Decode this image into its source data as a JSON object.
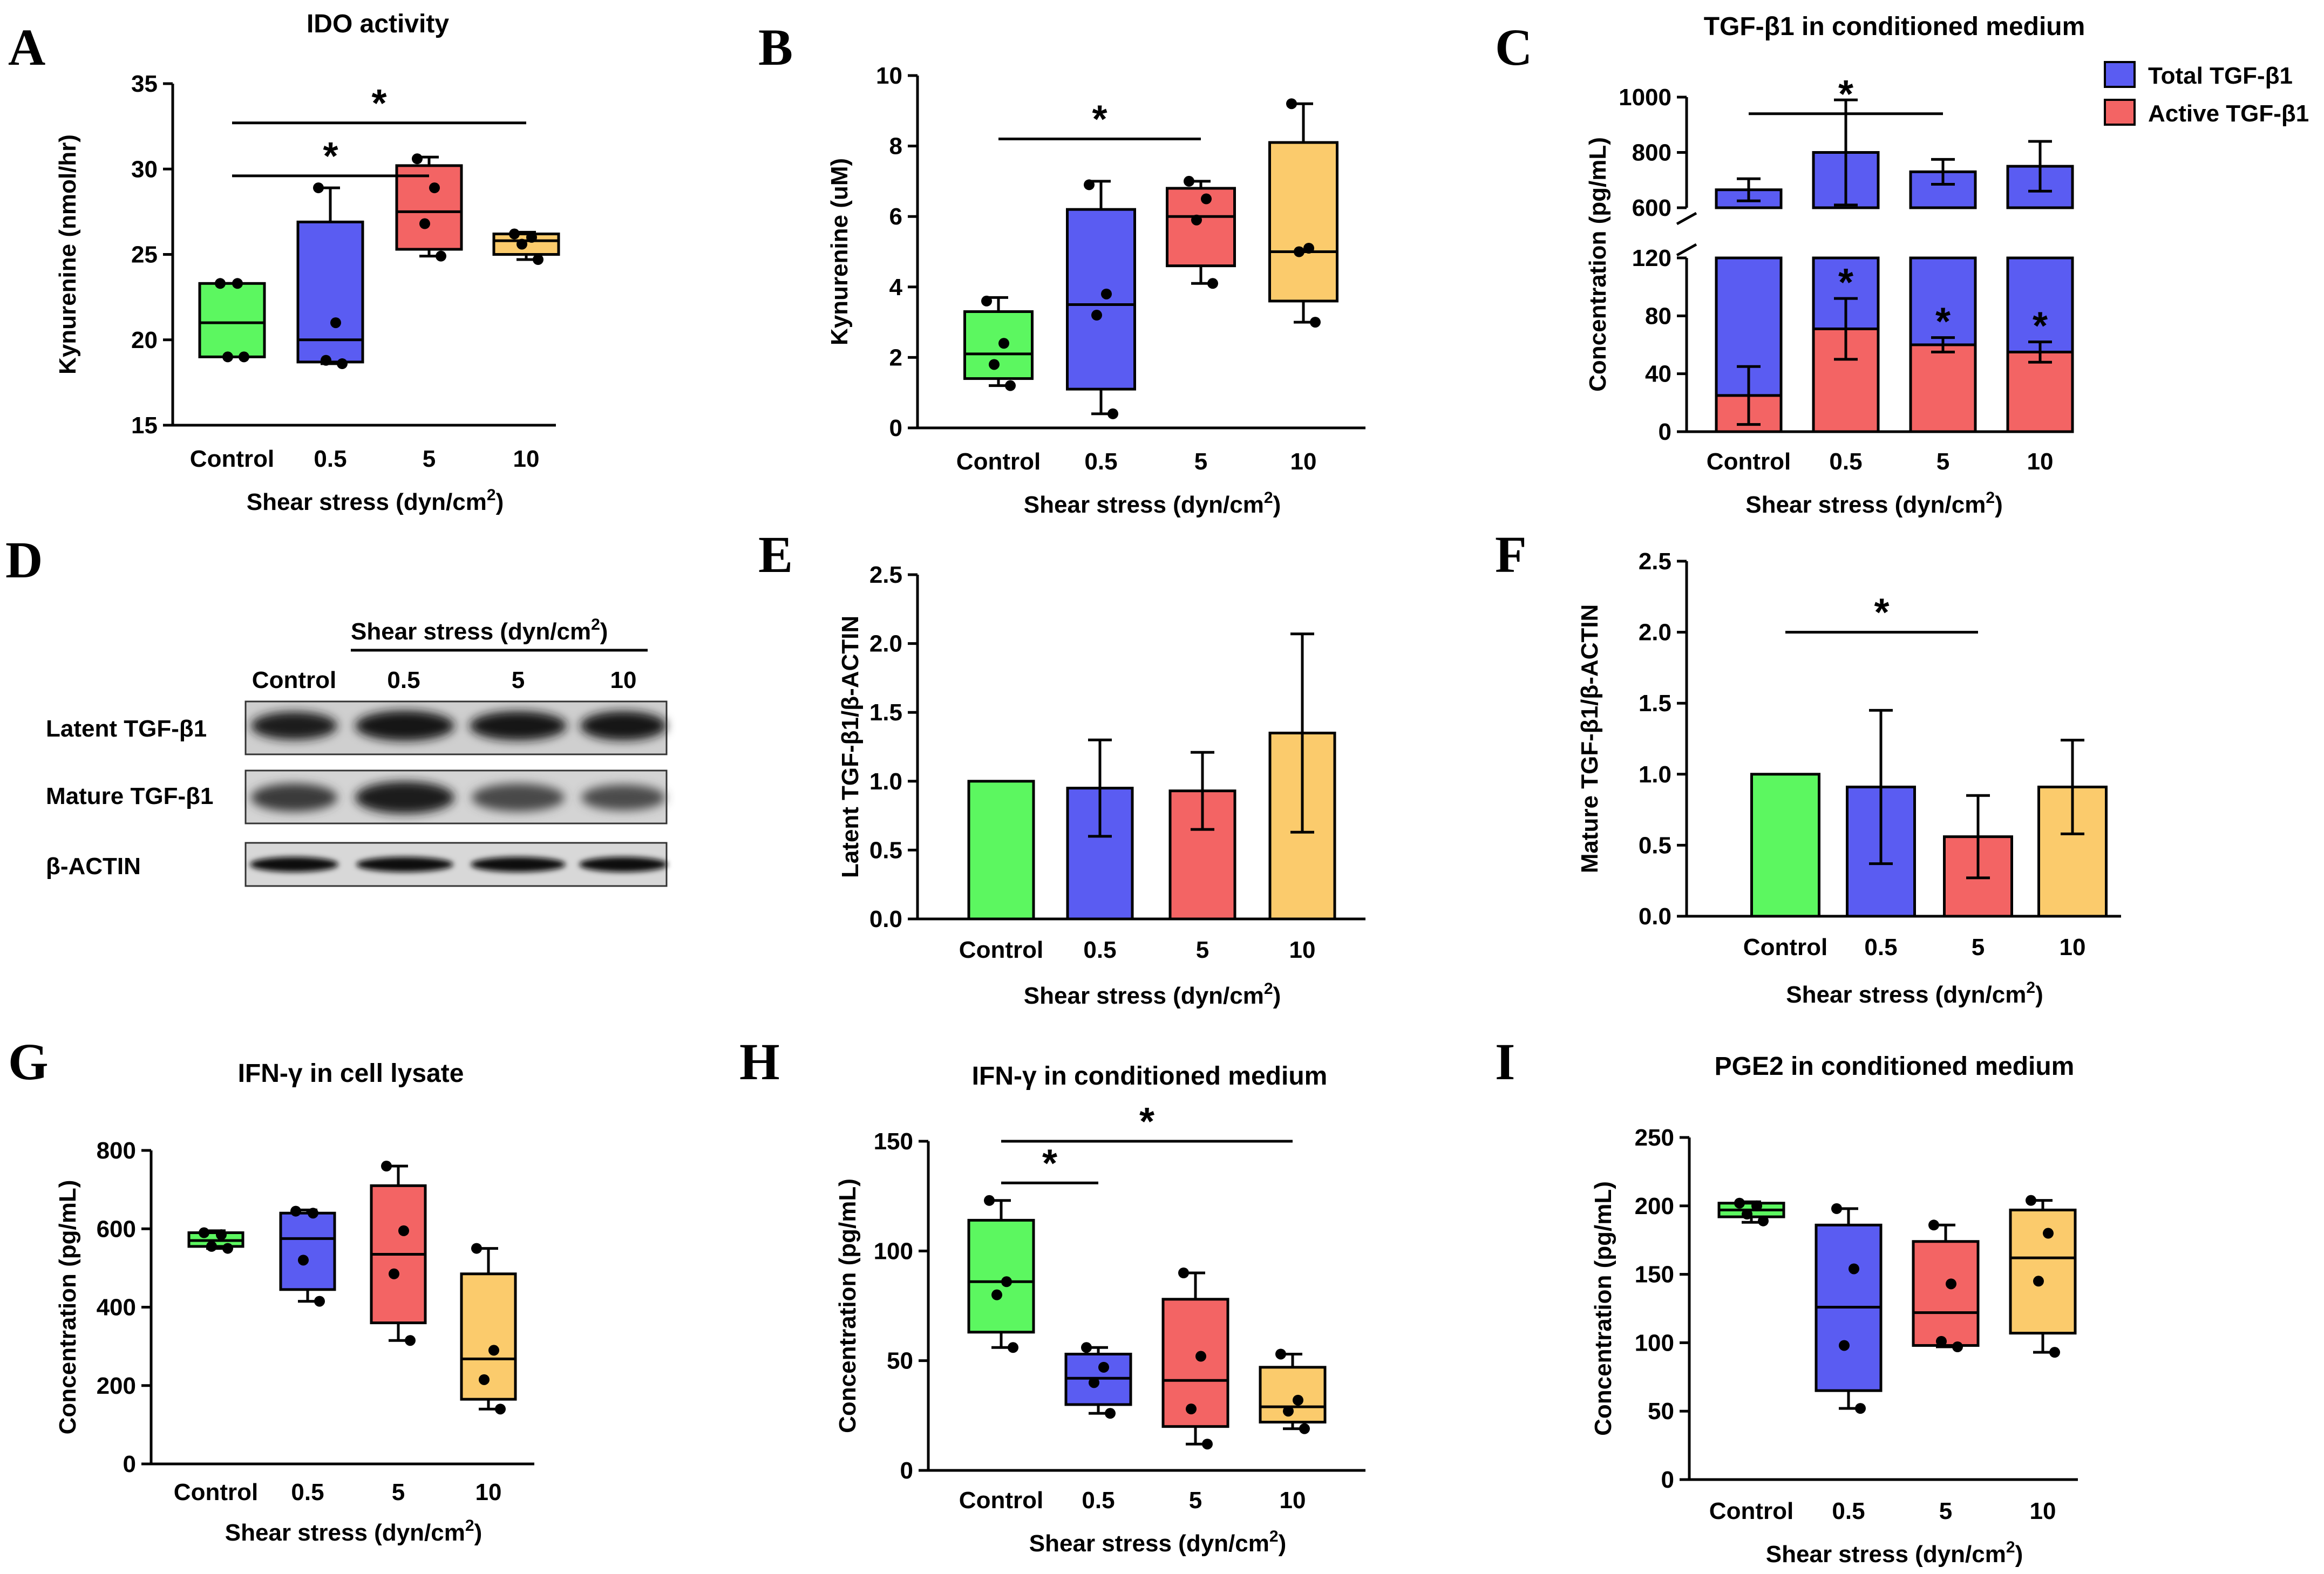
{
  "colors": {
    "control": "#5cf760",
    "low": "#5a5cf2",
    "mid": "#f36464",
    "high": "#fbcb6c",
    "star_blue": "#1a1a99",
    "star_red": "#8b1a1a"
  },
  "blot": {
    "letter": "D",
    "header": "Shear stress (dyn/cm",
    "header_sup": "2",
    "header_end": ")",
    "lanes": [
      "Control",
      "0.5",
      "5",
      "10"
    ],
    "rows": [
      "Latent TGF-β1",
      "Mature TGF-β1",
      "β-ACTIN"
    ]
  },
  "chart_data": [
    {
      "id": "A",
      "type": "box",
      "letter": "A",
      "title": "IDO activity",
      "ylabel": "Kynurenine (nmol/hr)",
      "xlabel": "Shear stress (dyn/cm",
      "xlabel_sup": "2",
      "xlabel_end": ")",
      "ylim": [
        15,
        35
      ],
      "yticks": [
        "15",
        "20",
        "25",
        "30",
        "35"
      ],
      "categories": [
        "Control",
        "0.5",
        "5",
        "10"
      ],
      "boxes": [
        {
          "min": 19.0,
          "q1": 19.0,
          "median": 21.0,
          "q3": 23.3,
          "max": 23.3,
          "points": [
            23.3,
            23.3,
            19.0,
            19.0
          ]
        },
        {
          "min": 18.6,
          "q1": 18.7,
          "median": 20.0,
          "q3": 26.9,
          "max": 28.9,
          "points": [
            28.9,
            21.0,
            18.8,
            18.6
          ]
        },
        {
          "min": 24.9,
          "q1": 25.3,
          "median": 27.5,
          "q3": 30.2,
          "max": 30.7,
          "points": [
            30.6,
            28.9,
            26.8,
            24.9
          ]
        },
        {
          "min": 24.7,
          "q1": 25.0,
          "median": 25.8,
          "q3": 26.2,
          "max": 26.3,
          "points": [
            26.2,
            26.0,
            25.6,
            24.7
          ]
        }
      ],
      "sig": [
        {
          "from": 0,
          "to": 3,
          "y": 32.7,
          "label": "*"
        },
        {
          "from": 0,
          "to": 2,
          "y": 29.6,
          "label": "*"
        }
      ]
    },
    {
      "id": "B",
      "type": "box",
      "letter": "B",
      "title": "",
      "ylabel": "Kynurenine (uM)",
      "xlabel": "Shear stress (dyn/cm",
      "xlabel_sup": "2",
      "xlabel_end": ")",
      "ylim": [
        0,
        10
      ],
      "yticks": [
        "0",
        "2",
        "4",
        "6",
        "8",
        "10"
      ],
      "categories": [
        "Control",
        "0.5",
        "5",
        "10"
      ],
      "boxes": [
        {
          "min": 1.2,
          "q1": 1.4,
          "median": 2.1,
          "q3": 3.3,
          "max": 3.7,
          "points": [
            3.6,
            2.4,
            1.8,
            1.2
          ]
        },
        {
          "min": 0.4,
          "q1": 1.1,
          "median": 3.5,
          "q3": 6.2,
          "max": 7.0,
          "points": [
            6.9,
            3.8,
            3.2,
            0.4
          ]
        },
        {
          "min": 4.1,
          "q1": 4.6,
          "median": 6.0,
          "q3": 6.8,
          "max": 7.0,
          "points": [
            7.0,
            6.5,
            5.9,
            4.1
          ]
        },
        {
          "min": 3.0,
          "q1": 3.6,
          "median": 5.0,
          "q3": 8.1,
          "max": 9.2,
          "points": [
            9.2,
            5.1,
            5.0,
            3.0
          ]
        }
      ],
      "sig": [
        {
          "from": 0,
          "to": 2,
          "y": 8.2,
          "label": "*"
        }
      ]
    },
    {
      "id": "C",
      "type": "stacked-bar-broken-axis",
      "letter": "C",
      "title": "TGF-β1 in conditioned medium",
      "ylabel": "Concentration (pg/mL)",
      "xlabel": "Shear stress (dyn/cm",
      "xlabel_sup": "2",
      "xlabel_end": ")",
      "categories": [
        "Control",
        "0.5",
        "5",
        "10"
      ],
      "lower_ylim": [
        0,
        120
      ],
      "lower_yticks": [
        "0",
        "40",
        "80",
        "120"
      ],
      "upper_ylim": [
        600,
        1000
      ],
      "upper_yticks": [
        "600",
        "800",
        "1000"
      ],
      "series": [
        {
          "name": "Total TGF-β1",
          "values": [
            665,
            800,
            730,
            750
          ],
          "errors": [
            40,
            190,
            45,
            90
          ]
        },
        {
          "name": "Active TGF-β1",
          "values": [
            25,
            71,
            60,
            55
          ],
          "errors": [
            20,
            21,
            5,
            7
          ]
        }
      ],
      "sig": [
        {
          "from": 0,
          "to": 2,
          "y": 940,
          "label": "*"
        }
      ],
      "bar_stars": [
        1,
        2,
        3
      ],
      "legend": [
        "Total TGF-β1",
        "Active TGF-β1"
      ]
    },
    {
      "id": "E",
      "type": "bar",
      "letter": "E",
      "title": "",
      "ylabel": "Latent TGF-β1/β-ACTIN",
      "xlabel": "Shear stress (dyn/cm",
      "xlabel_sup": "2",
      "xlabel_end": ")",
      "ylim": [
        0,
        2.5
      ],
      "yticks": [
        "0.0",
        "0.5",
        "1.0",
        "1.5",
        "2.0",
        "2.5"
      ],
      "categories": [
        "Control",
        "0.5",
        "5",
        "10"
      ],
      "values": [
        1.0,
        0.95,
        0.93,
        1.35
      ],
      "errors": [
        0,
        0.35,
        0.28,
        0.72
      ],
      "sig": []
    },
    {
      "id": "F",
      "type": "bar",
      "letter": "F",
      "title": "",
      "ylabel": "Mature TGF-β1/β-ACTIN",
      "xlabel": "Shear stress (dyn/cm",
      "xlabel_sup": "2",
      "xlabel_end": ")",
      "ylim": [
        0,
        2.5
      ],
      "yticks": [
        "0.0",
        "0.5",
        "1.0",
        "1.5",
        "2.0",
        "2.5"
      ],
      "categories": [
        "Control",
        "0.5",
        "5",
        "10"
      ],
      "values": [
        1.0,
        0.91,
        0.56,
        0.91
      ],
      "errors": [
        0,
        0.54,
        0.29,
        0.33
      ],
      "sig": [
        {
          "from": 0,
          "to": 2,
          "y": 2.0,
          "label": "*"
        }
      ]
    },
    {
      "id": "G",
      "type": "box",
      "letter": "G",
      "title": "IFN-γ in cell lysate",
      "ylabel": "Concentration (pg/mL)",
      "xlabel": "Shear stress (dyn/cm",
      "xlabel_sup": "2",
      "xlabel_end": ")",
      "ylim": [
        0,
        800
      ],
      "yticks": [
        "0",
        "200",
        "400",
        "600",
        "800"
      ],
      "categories": [
        "Control",
        "0.5",
        "5",
        "10"
      ],
      "boxes": [
        {
          "min": 550,
          "q1": 555,
          "median": 570,
          "q3": 590,
          "max": 595,
          "points": [
            590,
            585,
            555,
            550
          ]
        },
        {
          "min": 415,
          "q1": 445,
          "median": 575,
          "q3": 640,
          "max": 648,
          "points": [
            645,
            640,
            520,
            415
          ]
        },
        {
          "min": 315,
          "q1": 360,
          "median": 535,
          "q3": 710,
          "max": 760,
          "points": [
            760,
            595,
            485,
            315
          ]
        },
        {
          "min": 140,
          "q1": 165,
          "median": 268,
          "q3": 485,
          "max": 550,
          "points": [
            550,
            290,
            215,
            140
          ]
        }
      ],
      "sig": []
    },
    {
      "id": "H",
      "type": "box",
      "letter": "H",
      "title": "IFN-γ in conditioned medium",
      "ylabel": "Concentration (pg/mL)",
      "xlabel": "Shear stress (dyn/cm",
      "xlabel_sup": "2",
      "xlabel_end": ")",
      "ylim": [
        0,
        150
      ],
      "yticks": [
        "0",
        "50",
        "100",
        "150"
      ],
      "categories": [
        "Control",
        "0.5",
        "5",
        "10"
      ],
      "boxes": [
        {
          "min": 56,
          "q1": 63,
          "median": 86,
          "q3": 114,
          "max": 123,
          "points": [
            123,
            86,
            80,
            56
          ]
        },
        {
          "min": 26,
          "q1": 30,
          "median": 42,
          "q3": 53,
          "max": 56,
          "points": [
            56,
            47,
            40,
            26
          ]
        },
        {
          "min": 12,
          "q1": 20,
          "median": 41,
          "q3": 78,
          "max": 90,
          "points": [
            90,
            52,
            28,
            12
          ]
        },
        {
          "min": 19,
          "q1": 22,
          "median": 29,
          "q3": 47,
          "max": 53,
          "points": [
            53,
            32,
            27,
            19
          ]
        }
      ],
      "sig": [
        {
          "from": 0,
          "to": 3,
          "y": 150,
          "label": "*"
        },
        {
          "from": 0,
          "to": 1,
          "y": 131,
          "label": "*"
        }
      ]
    },
    {
      "id": "I",
      "type": "box",
      "letter": "I",
      "title": "PGE2 in conditioned medium",
      "ylabel": "Concentration (pg/mL)",
      "xlabel": "Shear stress (dyn/cm",
      "xlabel_sup": "2",
      "xlabel_end": ")",
      "ylim": [
        0,
        250
      ],
      "yticks": [
        "0",
        "50",
        "100",
        "150",
        "200",
        "250"
      ],
      "categories": [
        "Control",
        "0.5",
        "5",
        "10"
      ],
      "boxes": [
        {
          "min": 188,
          "q1": 192,
          "median": 197,
          "q3": 202,
          "max": 203,
          "points": [
            202,
            200,
            194,
            189
          ]
        },
        {
          "min": 52,
          "q1": 65,
          "median": 126,
          "q3": 186,
          "max": 198,
          "points": [
            198,
            154,
            98,
            52
          ]
        },
        {
          "min": 97,
          "q1": 98,
          "median": 122,
          "q3": 174,
          "max": 186,
          "points": [
            186,
            143,
            101,
            97
          ]
        },
        {
          "min": 93,
          "q1": 107,
          "median": 162,
          "q3": 197,
          "max": 204,
          "points": [
            204,
            180,
            145,
            93
          ]
        }
      ],
      "sig": []
    }
  ]
}
